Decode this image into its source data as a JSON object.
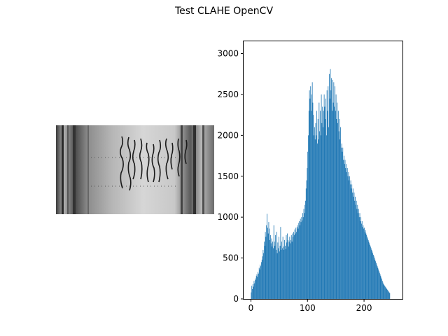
{
  "figure": {
    "title": "Test CLAHE OpenCV"
  },
  "image_panel": {
    "description_icon": "grayscale-image",
    "background": "#9a9a9a"
  },
  "chart_data": {
    "type": "bar",
    "subtype": "histogram",
    "title": "",
    "xlabel": "",
    "ylabel": "",
    "xlim": [
      -13,
      268
    ],
    "ylim": [
      0,
      3150
    ],
    "x_ticks": [
      0,
      100,
      200
    ],
    "y_ticks": [
      0,
      500,
      1000,
      1500,
      2000,
      2500,
      3000
    ],
    "bar_color": "#1f77b4",
    "grid": false,
    "bin_start": 0,
    "bin_width": 1,
    "values": [
      80,
      160,
      120,
      180,
      150,
      220,
      190,
      250,
      230,
      280,
      300,
      270,
      330,
      310,
      380,
      360,
      420,
      400,
      450,
      480,
      520,
      600,
      560,
      700,
      650,
      820,
      760,
      900,
      1040,
      870,
      800,
      940,
      860,
      720,
      780,
      680,
      740,
      640,
      700,
      620,
      900,
      700,
      650,
      780,
      600,
      820,
      560,
      690,
      620,
      760,
      580,
      650,
      880,
      600,
      700,
      620,
      760,
      640,
      600,
      720,
      650,
      610,
      780,
      690,
      800,
      720,
      640,
      700,
      760,
      680,
      720,
      780,
      700,
      800,
      760,
      820,
      780,
      850,
      800,
      870,
      820,
      880,
      900,
      860,
      930,
      950,
      900,
      980,
      940,
      1000,
      960,
      1050,
      1000,
      1100,
      1050,
      1150,
      1200,
      1350,
      1450,
      1600,
      1800,
      2000,
      2300,
      2550,
      2450,
      2600,
      2300,
      2500,
      2650,
      2400,
      2250,
      2000,
      2100,
      1950,
      2150,
      2000,
      2300,
      1900,
      2200,
      1950,
      2400,
      2050,
      2300,
      2000,
      2500,
      2150,
      2350,
      2100,
      2300,
      2500,
      2350,
      2200,
      2450,
      2000,
      2550,
      2300,
      2600,
      2100,
      2750,
      2450,
      2810,
      2550,
      2700,
      2300,
      2680,
      2400,
      2650,
      2350,
      2600,
      2300,
      2500,
      2200,
      2400,
      2150,
      2300,
      2050,
      2200,
      1950,
      2100,
      1850,
      1900,
      1800,
      1850,
      1700,
      1750,
      1650,
      1700,
      1600,
      1650,
      1550,
      1600,
      1500,
      1550,
      1450,
      1500,
      1400,
      1450,
      1350,
      1400,
      1300,
      1350,
      1250,
      1300,
      1200,
      1250,
      1150,
      1200,
      1100,
      1150,
      1050,
      1100,
      1000,
      1050,
      950,
      1000,
      920,
      950,
      880,
      900,
      860,
      870,
      820,
      840,
      800,
      780,
      760,
      740,
      720,
      700,
      680,
      660,
      640,
      620,
      600,
      580,
      560,
      540,
      520,
      500,
      480,
      460,
      440,
      420,
      400,
      380,
      360,
      340,
      320,
      300,
      280,
      260,
      240,
      220,
      200,
      180,
      170,
      160,
      150,
      140,
      130,
      120,
      110,
      100,
      90,
      80,
      70
    ]
  }
}
